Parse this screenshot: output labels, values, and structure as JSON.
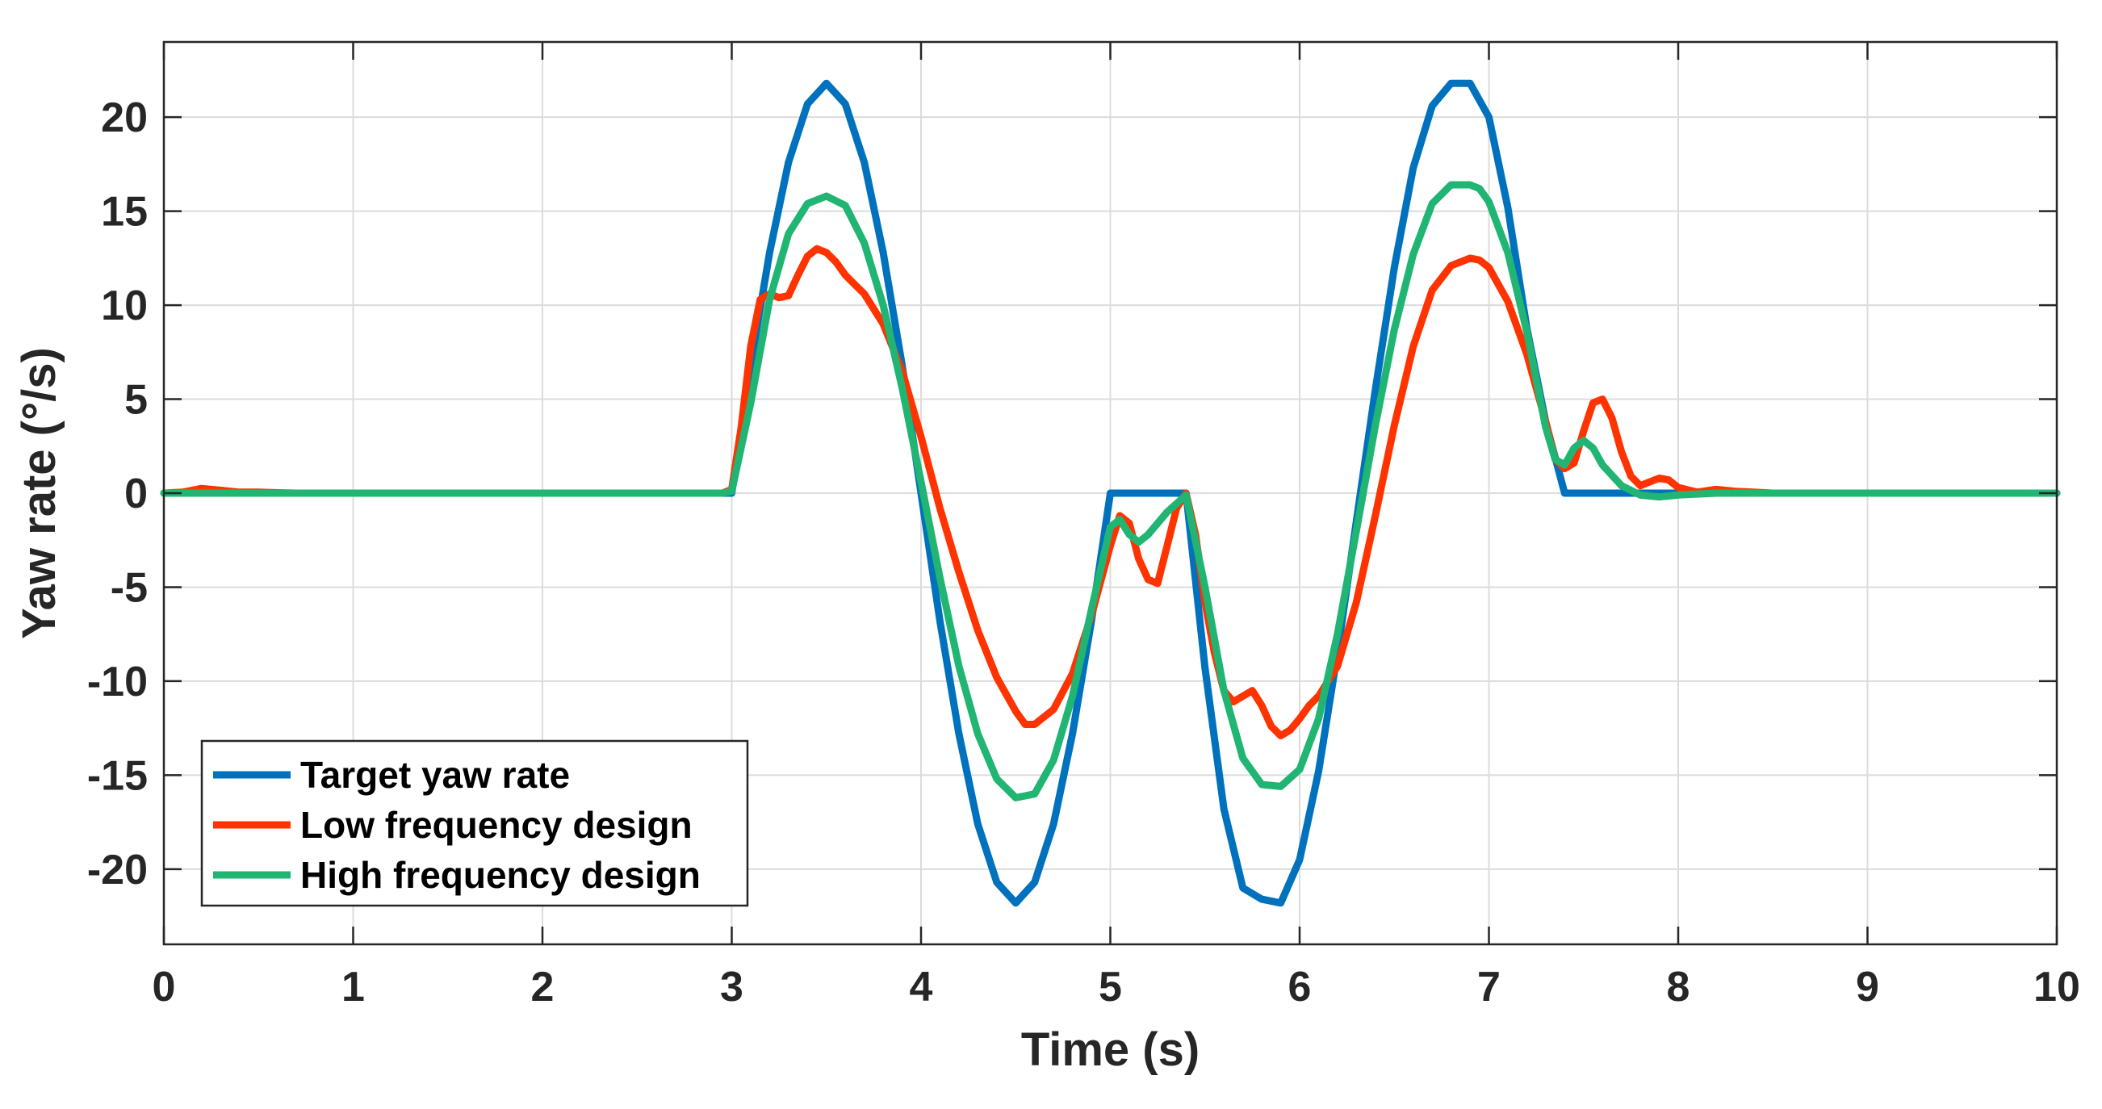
{
  "chart_data": {
    "type": "line",
    "title": "",
    "xlabel": "Time (s)",
    "ylabel": "Yaw rate (°/s)",
    "xlim": [
      0,
      10
    ],
    "ylim": [
      -24,
      24
    ],
    "xticks": [
      0,
      1,
      2,
      3,
      4,
      5,
      6,
      7,
      8,
      9,
      10
    ],
    "yticks": [
      -20,
      -15,
      -10,
      -5,
      0,
      5,
      10,
      15,
      20
    ],
    "x_tick_labels": [
      "0",
      "1",
      "2",
      "3",
      "4",
      "5",
      "6",
      "7",
      "8",
      "9",
      "10"
    ],
    "y_tick_labels": [
      "-20",
      "-15",
      "-10",
      "-5",
      "0",
      "5",
      "10",
      "15",
      "20"
    ],
    "grid": true,
    "legend_position": "bottom-left",
    "series": [
      {
        "name": "Target yaw rate",
        "color": "#0072BD",
        "x": [
          0,
          2.9,
          3.0,
          3.1,
          3.2,
          3.3,
          3.4,
          3.5,
          3.6,
          3.7,
          3.8,
          3.9,
          4.0,
          4.1,
          4.2,
          4.3,
          4.4,
          4.5,
          4.6,
          4.7,
          4.8,
          4.9,
          5.0,
          5.01,
          5.4,
          5.5,
          5.6,
          5.7,
          5.8,
          5.9,
          6.0,
          6.1,
          6.2,
          6.3,
          6.4,
          6.5,
          6.6,
          6.7,
          6.8,
          6.9,
          7.0,
          7.1,
          7.2,
          7.3,
          7.4,
          7.5,
          10
        ],
        "values": [
          0,
          0,
          0,
          6.8,
          12.8,
          17.6,
          20.7,
          21.8,
          20.7,
          17.6,
          12.8,
          6.8,
          0,
          -6.8,
          -12.8,
          -17.6,
          -20.7,
          -21.8,
          -20.7,
          -17.6,
          -12.8,
          -6.8,
          0,
          0,
          0,
          -9.3,
          -16.8,
          -21.0,
          -21.6,
          -21.8,
          -19.5,
          -14.8,
          -8.5,
          -1.5,
          5.5,
          12.0,
          17.3,
          20.6,
          21.8,
          21.8,
          20.0,
          15.2,
          8.8,
          3.8,
          0,
          0,
          0
        ]
      },
      {
        "name": "Low frequency design",
        "color": "#FF3300",
        "x": [
          0,
          0.1,
          0.2,
          0.3,
          0.4,
          0.5,
          0.6,
          0.7,
          2.95,
          3.0,
          3.05,
          3.1,
          3.15,
          3.2,
          3.25,
          3.3,
          3.35,
          3.4,
          3.45,
          3.5,
          3.55,
          3.6,
          3.65,
          3.7,
          3.8,
          3.9,
          4.0,
          4.1,
          4.2,
          4.3,
          4.4,
          4.5,
          4.55,
          4.6,
          4.7,
          4.8,
          4.9,
          5.0,
          5.05,
          5.1,
          5.15,
          5.2,
          5.25,
          5.3,
          5.35,
          5.4,
          5.45,
          5.5,
          5.55,
          5.6,
          5.65,
          5.7,
          5.75,
          5.8,
          5.85,
          5.9,
          5.95,
          6.0,
          6.05,
          6.1,
          6.2,
          6.3,
          6.4,
          6.5,
          6.6,
          6.7,
          6.8,
          6.9,
          6.95,
          7.0,
          7.1,
          7.2,
          7.3,
          7.35,
          7.4,
          7.45,
          7.5,
          7.55,
          7.6,
          7.65,
          7.7,
          7.75,
          7.8,
          7.85,
          7.9,
          7.95,
          8.0,
          8.1,
          8.2,
          8.3,
          8.5,
          10
        ],
        "values": [
          0,
          0.05,
          0.25,
          0.15,
          0.05,
          0.05,
          0.02,
          0,
          0,
          0.2,
          3.5,
          7.8,
          10.3,
          10.6,
          10.4,
          10.5,
          11.6,
          12.6,
          13.0,
          12.8,
          12.3,
          11.6,
          11.1,
          10.6,
          9.0,
          6.5,
          3.0,
          -0.8,
          -4.2,
          -7.3,
          -9.8,
          -11.6,
          -12.3,
          -12.3,
          -11.5,
          -9.6,
          -6.5,
          -2.8,
          -1.2,
          -1.6,
          -3.5,
          -4.6,
          -4.8,
          -2.8,
          -0.8,
          0,
          -2.2,
          -5.8,
          -8.5,
          -10.5,
          -11.1,
          -10.8,
          -10.5,
          -11.3,
          -12.4,
          -12.9,
          -12.6,
          -12.0,
          -11.3,
          -10.8,
          -9.2,
          -5.8,
          -1.2,
          3.6,
          7.8,
          10.8,
          12.1,
          12.5,
          12.4,
          12.0,
          10.2,
          7.4,
          3.8,
          1.8,
          1.3,
          1.6,
          3.3,
          4.8,
          5.0,
          4.0,
          2.2,
          0.9,
          0.4,
          0.6,
          0.8,
          0.7,
          0.3,
          0.05,
          0.2,
          0.1,
          0,
          0
        ]
      },
      {
        "name": "High frequency design",
        "color": "#20B573",
        "x": [
          0,
          2.95,
          3.0,
          3.1,
          3.2,
          3.3,
          3.4,
          3.5,
          3.6,
          3.7,
          3.8,
          3.9,
          4.0,
          4.1,
          4.2,
          4.3,
          4.4,
          4.5,
          4.6,
          4.7,
          4.8,
          4.9,
          5.0,
          5.05,
          5.1,
          5.15,
          5.2,
          5.3,
          5.4,
          5.5,
          5.6,
          5.7,
          5.8,
          5.9,
          6.0,
          6.1,
          6.2,
          6.3,
          6.4,
          6.5,
          6.6,
          6.7,
          6.8,
          6.9,
          6.95,
          7.0,
          7.1,
          7.2,
          7.3,
          7.35,
          7.4,
          7.45,
          7.5,
          7.55,
          7.6,
          7.7,
          7.8,
          7.9,
          8.0,
          8.2,
          10
        ],
        "values": [
          0,
          0,
          0.1,
          4.8,
          10.3,
          13.8,
          15.4,
          15.8,
          15.3,
          13.3,
          10.0,
          5.6,
          0.6,
          -4.5,
          -9.2,
          -12.8,
          -15.2,
          -16.2,
          -16.0,
          -14.2,
          -10.8,
          -6.2,
          -1.8,
          -1.4,
          -2.2,
          -2.6,
          -2.2,
          -1.0,
          -0.1,
          -5.0,
          -10.5,
          -14.1,
          -15.5,
          -15.6,
          -14.7,
          -12.0,
          -7.5,
          -2.0,
          3.6,
          8.7,
          12.7,
          15.4,
          16.4,
          16.4,
          16.2,
          15.5,
          12.8,
          8.6,
          3.5,
          1.8,
          1.5,
          2.4,
          2.8,
          2.4,
          1.5,
          0.4,
          -0.1,
          -0.2,
          -0.1,
          0,
          0
        ]
      }
    ]
  }
}
